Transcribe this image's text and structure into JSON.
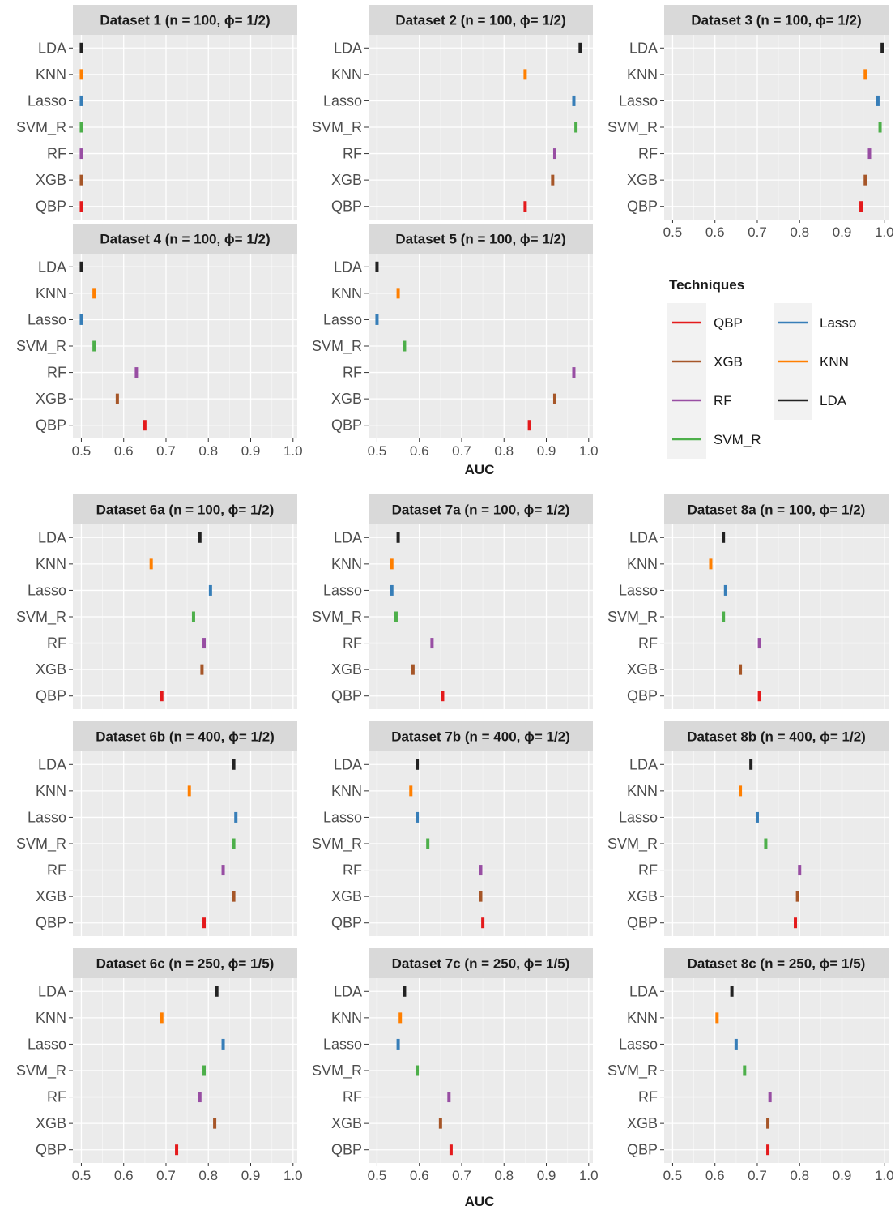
{
  "chart_data": {
    "type": "scatter",
    "facet_title_template": "{name} (n = {n}, ϕ= {phi})",
    "x_axis": {
      "label": "AUC",
      "ticks": [
        "0.5",
        "0.6",
        "0.7",
        "0.8",
        "0.9",
        "1.0"
      ],
      "range": [
        0.48,
        1.01
      ]
    },
    "techniques": [
      "LDA",
      "KNN",
      "Lasso",
      "SVM_R",
      "RF",
      "XGB",
      "QBP"
    ],
    "legend": {
      "title": "Techniques",
      "placement": "right",
      "entries": [
        {
          "name": "QBP",
          "color": "#e41a1c"
        },
        {
          "name": "XGB",
          "color": "#a65628"
        },
        {
          "name": "RF",
          "color": "#984ea3"
        },
        {
          "name": "SVM_R",
          "color": "#4daf4a"
        },
        {
          "name": "Lasso",
          "color": "#377eb8"
        },
        {
          "name": "KNN",
          "color": "#ff7f00"
        },
        {
          "name": "LDA",
          "color": "#222222"
        }
      ]
    },
    "colors": {
      "LDA": "#222222",
      "KNN": "#ff7f00",
      "Lasso": "#377eb8",
      "SVM_R": "#4daf4a",
      "RF": "#984ea3",
      "XGB": "#a65628",
      "QBP": "#e41a1c"
    },
    "panels": [
      {
        "name": "Dataset 1",
        "n": "100",
        "phi": "1/2",
        "values": {
          "LDA": 0.5,
          "KNN": 0.5,
          "Lasso": 0.5,
          "SVM_R": 0.5,
          "RF": 0.5,
          "XGB": 0.5,
          "QBP": 0.5
        }
      },
      {
        "name": "Dataset 2",
        "n": "100",
        "phi": "1/2",
        "values": {
          "LDA": 0.98,
          "KNN": 0.85,
          "Lasso": 0.965,
          "SVM_R": 0.97,
          "RF": 0.92,
          "XGB": 0.915,
          "QBP": 0.85
        }
      },
      {
        "name": "Dataset 3",
        "n": "100",
        "phi": "1/2",
        "values": {
          "LDA": 0.995,
          "KNN": 0.955,
          "Lasso": 0.985,
          "SVM_R": 0.99,
          "RF": 0.965,
          "XGB": 0.955,
          "QBP": 0.945
        }
      },
      {
        "name": "Dataset 4",
        "n": "100",
        "phi": "1/2",
        "values": {
          "LDA": 0.5,
          "KNN": 0.53,
          "Lasso": 0.5,
          "SVM_R": 0.53,
          "RF": 0.63,
          "XGB": 0.585,
          "QBP": 0.65
        }
      },
      {
        "name": "Dataset 5",
        "n": "100",
        "phi": "1/2",
        "values": {
          "LDA": 0.5,
          "KNN": 0.55,
          "Lasso": 0.5,
          "SVM_R": 0.565,
          "RF": 0.965,
          "XGB": 0.92,
          "QBP": 0.86
        }
      },
      {
        "name": "Dataset 6a",
        "n": "100",
        "phi": "1/2",
        "values": {
          "LDA": 0.78,
          "KNN": 0.665,
          "Lasso": 0.805,
          "SVM_R": 0.765,
          "RF": 0.79,
          "XGB": 0.785,
          "QBP": 0.69
        }
      },
      {
        "name": "Dataset 7a",
        "n": "100",
        "phi": "1/2",
        "values": {
          "LDA": 0.55,
          "KNN": 0.535,
          "Lasso": 0.535,
          "SVM_R": 0.545,
          "RF": 0.63,
          "XGB": 0.585,
          "QBP": 0.655
        }
      },
      {
        "name": "Dataset 8a",
        "n": "100",
        "phi": "1/2",
        "values": {
          "LDA": 0.62,
          "KNN": 0.59,
          "Lasso": 0.625,
          "SVM_R": 0.62,
          "RF": 0.705,
          "XGB": 0.66,
          "QBP": 0.705
        }
      },
      {
        "name": "Dataset 6b",
        "n": "400",
        "phi": "1/2",
        "values": {
          "LDA": 0.86,
          "KNN": 0.755,
          "Lasso": 0.865,
          "SVM_R": 0.86,
          "RF": 0.835,
          "XGB": 0.86,
          "QBP": 0.79
        }
      },
      {
        "name": "Dataset 7b",
        "n": "400",
        "phi": "1/2",
        "values": {
          "LDA": 0.595,
          "KNN": 0.58,
          "Lasso": 0.595,
          "SVM_R": 0.62,
          "RF": 0.745,
          "XGB": 0.745,
          "QBP": 0.75
        }
      },
      {
        "name": "Dataset 8b",
        "n": "400",
        "phi": "1/2",
        "values": {
          "LDA": 0.685,
          "KNN": 0.66,
          "Lasso": 0.7,
          "SVM_R": 0.72,
          "RF": 0.8,
          "XGB": 0.795,
          "QBP": 0.79
        }
      },
      {
        "name": "Dataset 6c",
        "n": "250",
        "phi": "1/5",
        "values": {
          "LDA": 0.82,
          "KNN": 0.69,
          "Lasso": 0.835,
          "SVM_R": 0.79,
          "RF": 0.78,
          "XGB": 0.815,
          "QBP": 0.725
        }
      },
      {
        "name": "Dataset 7c",
        "n": "250",
        "phi": "1/5",
        "values": {
          "LDA": 0.565,
          "KNN": 0.555,
          "Lasso": 0.55,
          "SVM_R": 0.595,
          "RF": 0.67,
          "XGB": 0.65,
          "QBP": 0.675
        }
      },
      {
        "name": "Dataset 8c",
        "n": "250",
        "phi": "1/5",
        "values": {
          "LDA": 0.64,
          "KNN": 0.605,
          "Lasso": 0.65,
          "SVM_R": 0.67,
          "RF": 0.73,
          "XGB": 0.725,
          "QBP": 0.725
        }
      }
    ]
  }
}
